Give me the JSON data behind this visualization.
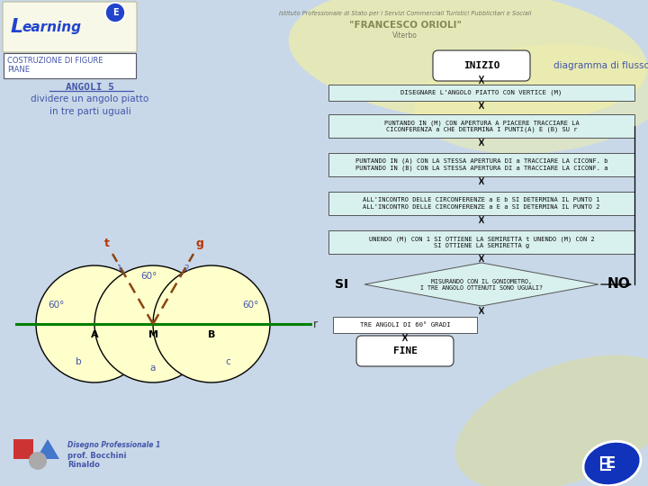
{
  "bg_color": "#c8d8e8",
  "title_box_text": "COSTRUZIONE DI FIGURE\nPIANE",
  "subtitle1": "ANGOLI 5",
  "subtitle2": "dividere un angolo piatto\nin tre parti uguali",
  "header_inst": "Istituto Professionale di Stato per i Servizi Commerciali Turistici Pubblicitari e Sociali",
  "header_name": "\"FRANCESCO ORIOLI\"",
  "header_city": "Viterbo",
  "inizio_text": "INIZIO",
  "diagramma_text": "diagramma di flusso",
  "box1_text": "DISEGNARE L'ANGOLO PIATTO CON VERTICE (M)",
  "box2_text": "PUNTANDO IN (M) CON APERTURA A PIACERE TRACCIARE LA\nCICONFERENZA a CHE DETERMINA I PUNTI(A) E (B) SU r",
  "box3_text": "PUNTANDO IN (A) CON LA STESSA APERTURA DI a TRACCIARE LA CICONF. b\nPUNTANDO IN (B) CON LA STESSA APERTURA DI a TRACCIARE LA CICONF. a",
  "box4_text": "ALL'INCONTRO DELLE CIRCONFERENZE a E b SI DETERMINA IL PUNTO 1\nALL'INCONTRO DELLE CIRCONFERENZE a E a SI DETERMINA IL PUNTO 2",
  "box5_text": "UNENDO (M) CON 1 SI OTTIENE LA SEMIRETTA t UNENDO (M) CON 2\nSI OTTIENE LA SEMIRETTA g",
  "diamond_text": "MISURANDO CON IL GONIOMETRO,\nI TRE ANGOLO OTTENUTI SONO UGUALI?",
  "si_text": "SI",
  "no_text": "NO",
  "rect_bottom_text": "TRE ANGOLI DI 60° GRADI",
  "fine_text": "FINE",
  "footer_text1": "Disegno Professionale 1",
  "footer_text2": "prof. Bocchini\nRinaldo",
  "yellow_fill": "#ffffcc",
  "line_color": "#008000",
  "dashed_color": "#8B4513",
  "text_blue": "#4455aa",
  "flow_box_fill": "#d8f0ee",
  "bg_color_logo": "#f8f8e8"
}
